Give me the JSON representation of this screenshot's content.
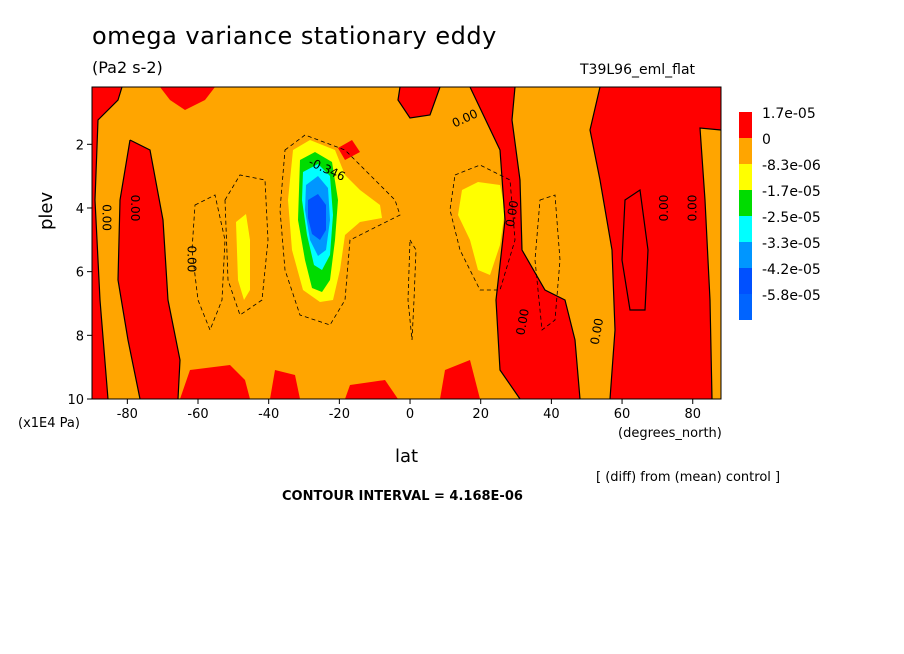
{
  "title": "omega variance stationary eddy",
  "units_label": "(Pa2 s-2)",
  "run_label": "T39L96_eml_flat",
  "x_units": "(degrees_north)",
  "y_units": "(x1E4 Pa)",
  "note": "[ (diff) from (mean) control ]",
  "contour_interval": "CONTOUR INTERVAL = 4.168E-06",
  "chart_data": {
    "type": "heatmap",
    "title": "omega variance stationary eddy",
    "xlabel": "lat",
    "ylabel": "plev",
    "xlim": [
      -90,
      88
    ],
    "ylim": [
      10,
      0.2
    ],
    "xticks": [
      -80,
      -60,
      -40,
      -20,
      0,
      20,
      40,
      60,
      80
    ],
    "yticks": [
      2,
      4,
      6,
      8,
      10
    ],
    "legend": {
      "placement": "right",
      "levels": [
        {
          "label": "1.7e-05",
          "color": "#ff0000"
        },
        {
          "label": "0",
          "color": "#ffa500"
        },
        {
          "label": "-8.3e-06",
          "color": "#ffff00"
        },
        {
          "label": "-1.7e-05",
          "color": "#00dc00"
        },
        {
          "label": "-2.5e-05",
          "color": "#00ffff"
        },
        {
          "label": "-3.3e-05",
          "color": "#0096ff"
        },
        {
          "label": "-4.2e-05",
          "color": "#0050ff"
        },
        {
          "label": "-5.8e-05",
          "color": "#0064ff"
        }
      ]
    },
    "contour_labels": [
      {
        "text": "0.00",
        "lat": -87,
        "plev": 4.3,
        "rotate": 90
      },
      {
        "text": "0.00",
        "lat": -79,
        "plev": 4.0,
        "rotate": 90
      },
      {
        "text": "0.00",
        "lat": -63,
        "plev": 5.6,
        "rotate": 90
      },
      {
        "text": "0.00",
        "lat": 16,
        "plev": 1.3,
        "rotate": -25
      },
      {
        "text": "0.00",
        "lat": 30,
        "plev": 4.2,
        "rotate": -80
      },
      {
        "text": "0.00",
        "lat": 33,
        "plev": 7.6,
        "rotate": -80
      },
      {
        "text": "0.00",
        "lat": 54,
        "plev": 7.9,
        "rotate": -80
      },
      {
        "text": "0.00",
        "lat": 73,
        "plev": 4.0,
        "rotate": -90
      },
      {
        "text": "0.00",
        "lat": 81,
        "plev": 4.0,
        "rotate": -90
      },
      {
        "text": "-0.346",
        "lat": -24,
        "plev": 2.9,
        "rotate": 25
      }
    ]
  }
}
